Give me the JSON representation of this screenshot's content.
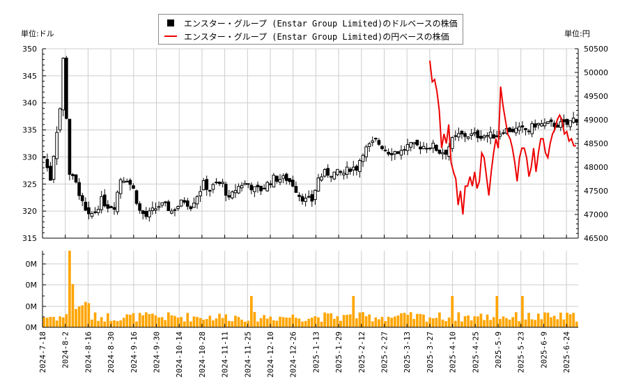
{
  "legend": {
    "usd_label": "エンスター・グループ (Enstar Group Limited)のドルベースの株価",
    "jpy_label": "エンスター・グループ (Enstar Group Limited)の円ベースの株価"
  },
  "axes": {
    "left_unit": "単位:ドル",
    "right_unit": "単位:円"
  },
  "colors": {
    "candle": "#000000",
    "jpy_line": "#ee0000",
    "volume": "#ffa500",
    "grid": "#cccccc"
  },
  "chart_data": [
    {
      "type": "candlestick",
      "title": "エンスター・グループ (Enstar Group Limited)の株価",
      "ylabel": "単位:ドル",
      "ylim": [
        315,
        350
      ],
      "yticks": [
        315,
        320,
        325,
        330,
        335,
        340,
        345,
        350
      ],
      "x_ticks": [
        "2024-7-18",
        "2024-8-2",
        "2024-8-16",
        "2024-8-30",
        "2024-9-16",
        "2024-9-30",
        "2024-10-14",
        "2024-10-28",
        "2024-11-11",
        "2024-11-25",
        "2024-12-10",
        "2024-12-26",
        "2025-1-13",
        "2025-1-29",
        "2025-2-12",
        "2025-2-27",
        "2025-3-13",
        "2025-3-27",
        "2025-4-10",
        "2025-4-25",
        "2025-5-9",
        "2025-5-23",
        "2025-6-9",
        "2025-6-24"
      ],
      "series_name": "エンスター・グループ (Enstar Group Limited)のドルベースの株価",
      "close_path": [
        [
          0,
          330
        ],
        [
          2,
          326
        ],
        [
          4,
          335
        ],
        [
          5,
          339
        ],
        [
          6,
          348
        ],
        [
          8,
          327
        ],
        [
          10,
          325
        ],
        [
          12,
          322
        ],
        [
          14,
          319
        ],
        [
          16,
          320
        ],
        [
          18,
          322
        ],
        [
          20,
          321
        ],
        [
          22,
          321
        ],
        [
          24,
          326
        ],
        [
          26,
          326
        ],
        [
          28,
          324
        ],
        [
          30,
          320
        ],
        [
          32,
          319
        ],
        [
          34,
          320
        ],
        [
          36,
          321
        ],
        [
          38,
          321
        ],
        [
          40,
          320
        ],
        [
          42,
          321
        ],
        [
          44,
          322
        ],
        [
          46,
          321
        ],
        [
          48,
          323
        ],
        [
          50,
          325
        ],
        [
          52,
          324
        ],
        [
          54,
          325
        ],
        [
          56,
          325
        ],
        [
          58,
          322
        ],
        [
          60,
          324
        ],
        [
          62,
          325
        ],
        [
          64,
          325
        ],
        [
          66,
          324
        ],
        [
          68,
          324
        ],
        [
          70,
          325
        ],
        [
          72,
          326
        ],
        [
          74,
          326
        ],
        [
          76,
          326
        ],
        [
          78,
          325
        ],
        [
          80,
          323
        ],
        [
          82,
          322
        ],
        [
          84,
          322
        ],
        [
          86,
          326
        ],
        [
          88,
          327
        ],
        [
          90,
          327
        ],
        [
          92,
          327
        ],
        [
          94,
          327
        ],
        [
          96,
          328
        ],
        [
          98,
          328
        ],
        [
          100,
          331
        ],
        [
          102,
          332
        ],
        [
          104,
          333
        ],
        [
          106,
          332
        ],
        [
          108,
          331
        ],
        [
          110,
          331
        ],
        [
          112,
          331
        ],
        [
          114,
          332
        ],
        [
          116,
          332
        ],
        [
          118,
          332
        ],
        [
          120,
          332
        ],
        [
          122,
          332
        ],
        [
          124,
          331
        ],
        [
          126,
          331
        ],
        [
          128,
          333
        ],
        [
          130,
          334
        ],
        [
          132,
          334
        ],
        [
          134,
          334
        ],
        [
          136,
          334
        ],
        [
          138,
          334
        ],
        [
          140,
          334
        ],
        [
          142,
          334
        ],
        [
          144,
          335
        ],
        [
          146,
          335
        ],
        [
          148,
          335
        ],
        [
          150,
          335
        ],
        [
          152,
          335
        ],
        [
          154,
          336
        ],
        [
          156,
          336
        ],
        [
          158,
          336
        ],
        [
          160,
          336
        ],
        [
          162,
          336
        ],
        [
          164,
          336
        ],
        [
          166,
          337
        ]
      ]
    },
    {
      "type": "line",
      "series_name": "エンスター・グループ (Enstar Group Limited)の円ベースの株価",
      "ylabel": "単位:円",
      "ylim": [
        46500,
        50500
      ],
      "yticks": [
        46500,
        47000,
        47500,
        48000,
        48500,
        49000,
        49500,
        50000,
        50500
      ],
      "points": [
        [
          "2025-3-27",
          50250
        ],
        [
          "2025-3-28",
          49800
        ],
        [
          "2025-3-31",
          49850
        ],
        [
          "2025-4-2",
          49600
        ],
        [
          "2025-4-3",
          49200
        ],
        [
          "2025-4-4",
          48400
        ],
        [
          "2025-4-7",
          48700
        ],
        [
          "2025-4-8",
          48500
        ],
        [
          "2025-4-9",
          48900
        ],
        [
          "2025-4-10",
          48100
        ],
        [
          "2025-4-11",
          47900
        ],
        [
          "2025-4-14",
          47750
        ],
        [
          "2025-4-15",
          47200
        ],
        [
          "2025-4-16",
          47500
        ],
        [
          "2025-4-17",
          47000
        ],
        [
          "2025-4-18",
          47600
        ],
        [
          "2025-4-21",
          47600
        ],
        [
          "2025-4-22",
          47800
        ],
        [
          "2025-4-23",
          47600
        ],
        [
          "2025-4-24",
          47900
        ],
        [
          "2025-4-25",
          47550
        ],
        [
          "2025-4-28",
          47700
        ],
        [
          "2025-4-29",
          48300
        ],
        [
          "2025-4-30",
          48200
        ],
        [
          "2025-5-1",
          47800
        ],
        [
          "2025-5-2",
          47400
        ],
        [
          "2025-5-5",
          47900
        ],
        [
          "2025-5-6",
          48300
        ],
        [
          "2025-5-7",
          48600
        ],
        [
          "2025-5-8",
          48400
        ],
        [
          "2025-5-9",
          49700
        ],
        [
          "2025-5-12",
          49300
        ],
        [
          "2025-5-13",
          49000
        ],
        [
          "2025-5-14",
          48700
        ],
        [
          "2025-5-15",
          48600
        ],
        [
          "2025-5-16",
          48400
        ],
        [
          "2025-5-19",
          48100
        ],
        [
          "2025-5-20",
          47700
        ],
        [
          "2025-5-21",
          48200
        ],
        [
          "2025-5-22",
          48400
        ],
        [
          "2025-5-23",
          48400
        ],
        [
          "2025-5-26",
          48200
        ],
        [
          "2025-5-27",
          47800
        ],
        [
          "2025-5-28",
          48000
        ],
        [
          "2025-5-29",
          48400
        ],
        [
          "2025-5-30",
          47900
        ],
        [
          "2025-6-2",
          48300
        ],
        [
          "2025-6-3",
          48600
        ],
        [
          "2025-6-4",
          48600
        ],
        [
          "2025-6-5",
          48300
        ],
        [
          "2025-6-6",
          48200
        ],
        [
          "2025-6-9",
          48500
        ],
        [
          "2025-6-10",
          48700
        ],
        [
          "2025-6-11",
          48800
        ],
        [
          "2025-6-12",
          49000
        ],
        [
          "2025-6-13",
          49100
        ],
        [
          "2025-6-16",
          49000
        ],
        [
          "2025-6-17",
          48700
        ],
        [
          "2025-6-18",
          48750
        ],
        [
          "2025-6-19",
          48550
        ],
        [
          "2025-6-20",
          48600
        ],
        [
          "2025-6-23",
          48450
        ],
        [
          "2025-6-24",
          48450
        ]
      ]
    },
    {
      "type": "bar",
      "series_name": "出来高",
      "yticks_labels": [
        "0M",
        "0M",
        "0M",
        "0M"
      ],
      "note": "volume axis labels all rendered as 0M"
    }
  ]
}
